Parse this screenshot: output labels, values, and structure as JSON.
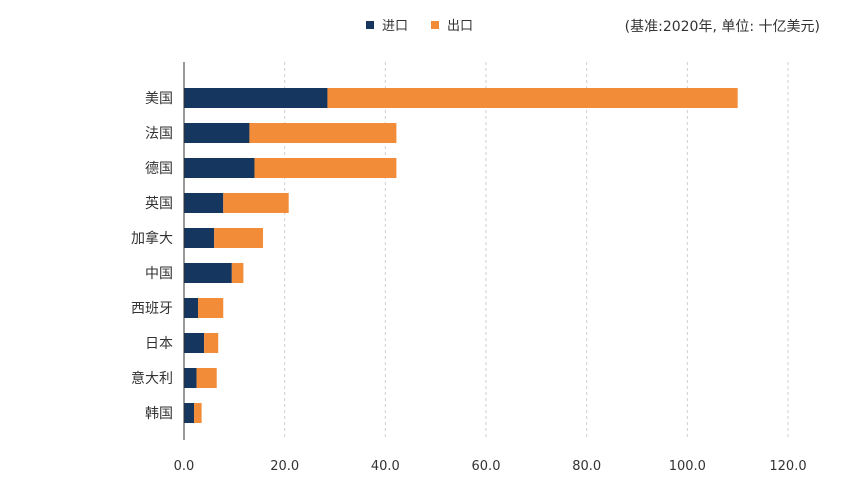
{
  "legend": {
    "import_label": "进口",
    "export_label": "出口"
  },
  "unit_note": "(基准:2020年, 单位: 十亿美元)",
  "colors": {
    "import": "#14365f",
    "export": "#f28c38",
    "grid": "#cfcfcf",
    "text": "#333333"
  },
  "chart_data": {
    "type": "bar",
    "orientation": "horizontal",
    "stacked": true,
    "categories": [
      "美国",
      "法国",
      "德国",
      "英国",
      "加拿大",
      "中国",
      "西班牙",
      "日本",
      "意大利",
      "韩国"
    ],
    "series": [
      {
        "name": "进口",
        "values": [
          28.5,
          13.0,
          14.0,
          7.8,
          6.0,
          9.5,
          2.8,
          4.0,
          2.5,
          2.0
        ]
      },
      {
        "name": "出口",
        "values": [
          81.5,
          29.2,
          28.2,
          13.0,
          9.7,
          2.3,
          5.0,
          2.8,
          4.0,
          1.5
        ]
      }
    ],
    "x_ticks": [
      "0.0",
      "20.0",
      "40.0",
      "60.0",
      "80.0",
      "100.0",
      "120.0"
    ],
    "xlim": [
      0,
      120
    ],
    "grid": true,
    "legend_position": "top-center"
  }
}
